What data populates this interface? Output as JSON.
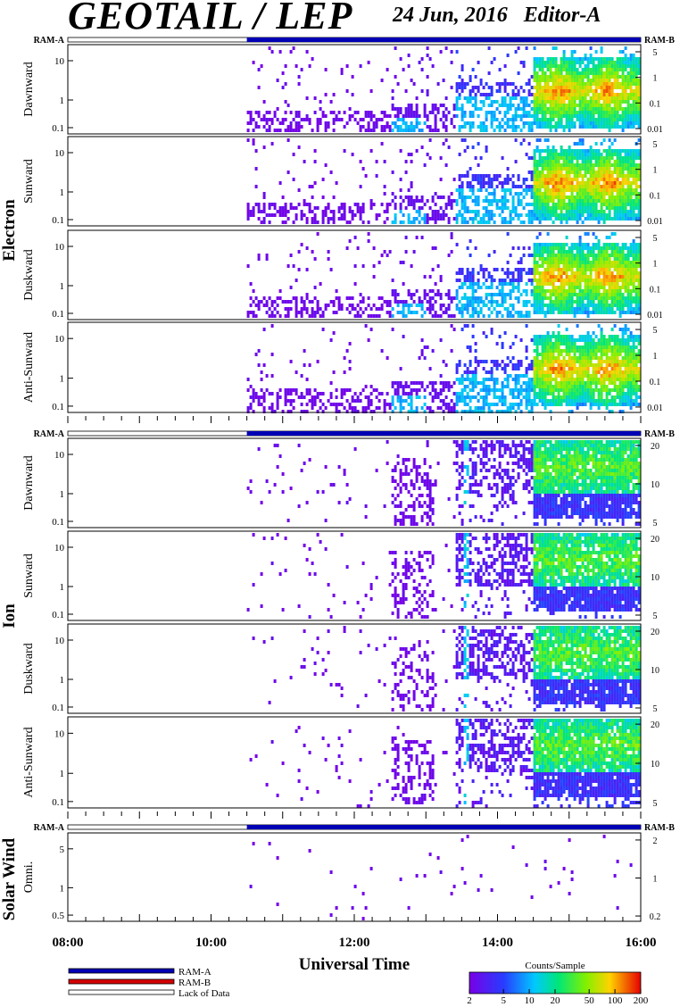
{
  "header": {
    "title": "GEOTAIL / LEP",
    "date": "24 Jun, 2016",
    "editor": "Editor-A"
  },
  "chart_data": {
    "type": "heatmap",
    "xlabel": "Universal Time",
    "x_ticks": [
      "08:00",
      "10:00",
      "12:00",
      "14:00",
      "16:00"
    ],
    "xlim": [
      "08:00",
      "16:00"
    ],
    "data_start": "10:30",
    "ram_labels": {
      "left": "RAM-A",
      "right": "RAM-B"
    },
    "groups": [
      {
        "label": "Electron",
        "panels": [
          {
            "name": "Dawnward",
            "yticks": [
              "10",
              "1",
              "0.1"
            ],
            "rticks": [
              "5",
              "1",
              "0.1",
              "0.01"
            ]
          },
          {
            "name": "Sunward",
            "yticks": [
              "10",
              "1",
              "0.1"
            ],
            "rticks": [
              "5",
              "1",
              "0.1",
              "0.01"
            ]
          },
          {
            "name": "Duskward",
            "yticks": [
              "10",
              "1",
              "0.1"
            ],
            "rticks": [
              "5",
              "1",
              "0.1",
              "0.01"
            ]
          },
          {
            "name": "Anti-Sunward",
            "yticks": [
              "10",
              "1",
              "0.1"
            ],
            "rticks": [
              "5",
              "1",
              "0.1",
              "0.01"
            ]
          }
        ]
      },
      {
        "label": "Ion",
        "panels": [
          {
            "name": "Dawnward",
            "yticks": [
              "10",
              "1",
              "0.1"
            ],
            "rticks": [
              "20",
              "10",
              "5"
            ]
          },
          {
            "name": "Sunward",
            "yticks": [
              "10",
              "1",
              "0.1"
            ],
            "rticks": [
              "20",
              "10",
              "5"
            ]
          },
          {
            "name": "Duskward",
            "yticks": [
              "10",
              "1",
              "0.1"
            ],
            "rticks": [
              "20",
              "10",
              "5"
            ]
          },
          {
            "name": "Anti-Sunward",
            "yticks": [
              "10",
              "1",
              "0.1"
            ],
            "rticks": [
              "20",
              "10",
              "5"
            ]
          }
        ]
      },
      {
        "label": "Solar Wind",
        "panels": [
          {
            "name": "Omni.",
            "yticks": [
              "5",
              "1",
              "0.5"
            ],
            "rticks": [
              "2",
              "1",
              "0.2"
            ]
          }
        ]
      }
    ],
    "legend": [
      {
        "label": "RAM-A",
        "color": "#0000b4"
      },
      {
        "label": "RAM-B",
        "color": "#d40000"
      },
      {
        "label": "Lack of Data",
        "color": "#ffffff"
      }
    ],
    "colorbar": {
      "title": "Counts/Sample",
      "scale": "log",
      "ticks": [
        "2",
        "5",
        "10",
        "20",
        "50",
        "100",
        "200"
      ],
      "range": [
        2,
        200
      ]
    }
  }
}
